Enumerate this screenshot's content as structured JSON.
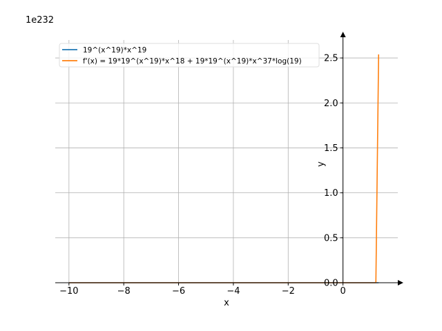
{
  "chart_data": {
    "type": "line",
    "title": "",
    "xlabel": "x",
    "ylabel": "y",
    "y_scale_label": "1e232",
    "y_scale_exponent": 232,
    "xlim": [
      -10.5,
      2.0
    ],
    "ylim": [
      0.0,
      2.7
    ],
    "x_ticks": [
      -10,
      -8,
      -6,
      -4,
      -2,
      0
    ],
    "x_tick_labels": [
      "−10",
      "−8",
      "−6",
      "−4",
      "−2",
      "0"
    ],
    "y_ticks": [
      0.0,
      0.5,
      1.0,
      1.5,
      2.0,
      2.5
    ],
    "y_tick_labels": [
      "0.0",
      "0.5",
      "1.0",
      "1.5",
      "2.0",
      "2.5"
    ],
    "grid": true,
    "legend_position": "top-left",
    "series": [
      {
        "name": "19^(x^19)*x^19",
        "color": "#1f77b4",
        "x": [
          -10,
          -8,
          -6,
          -4,
          -2,
          0,
          1.0,
          1.1,
          1.2,
          1.3
        ],
        "y": [
          0,
          0,
          0,
          0,
          0,
          0,
          0,
          0,
          0,
          0
        ]
      },
      {
        "name": "f'(x) = 19*19^(x^19)*x^18 + 19*19^(x^19)*x^37*log(19)",
        "color": "#ff7f0e",
        "x": [
          -10,
          -8,
          -6,
          -4,
          -2,
          0,
          1.0,
          1.1,
          1.2,
          1.3
        ],
        "y": [
          0,
          0,
          0,
          0,
          0,
          0,
          0,
          0,
          0,
          2.54
        ]
      }
    ]
  }
}
